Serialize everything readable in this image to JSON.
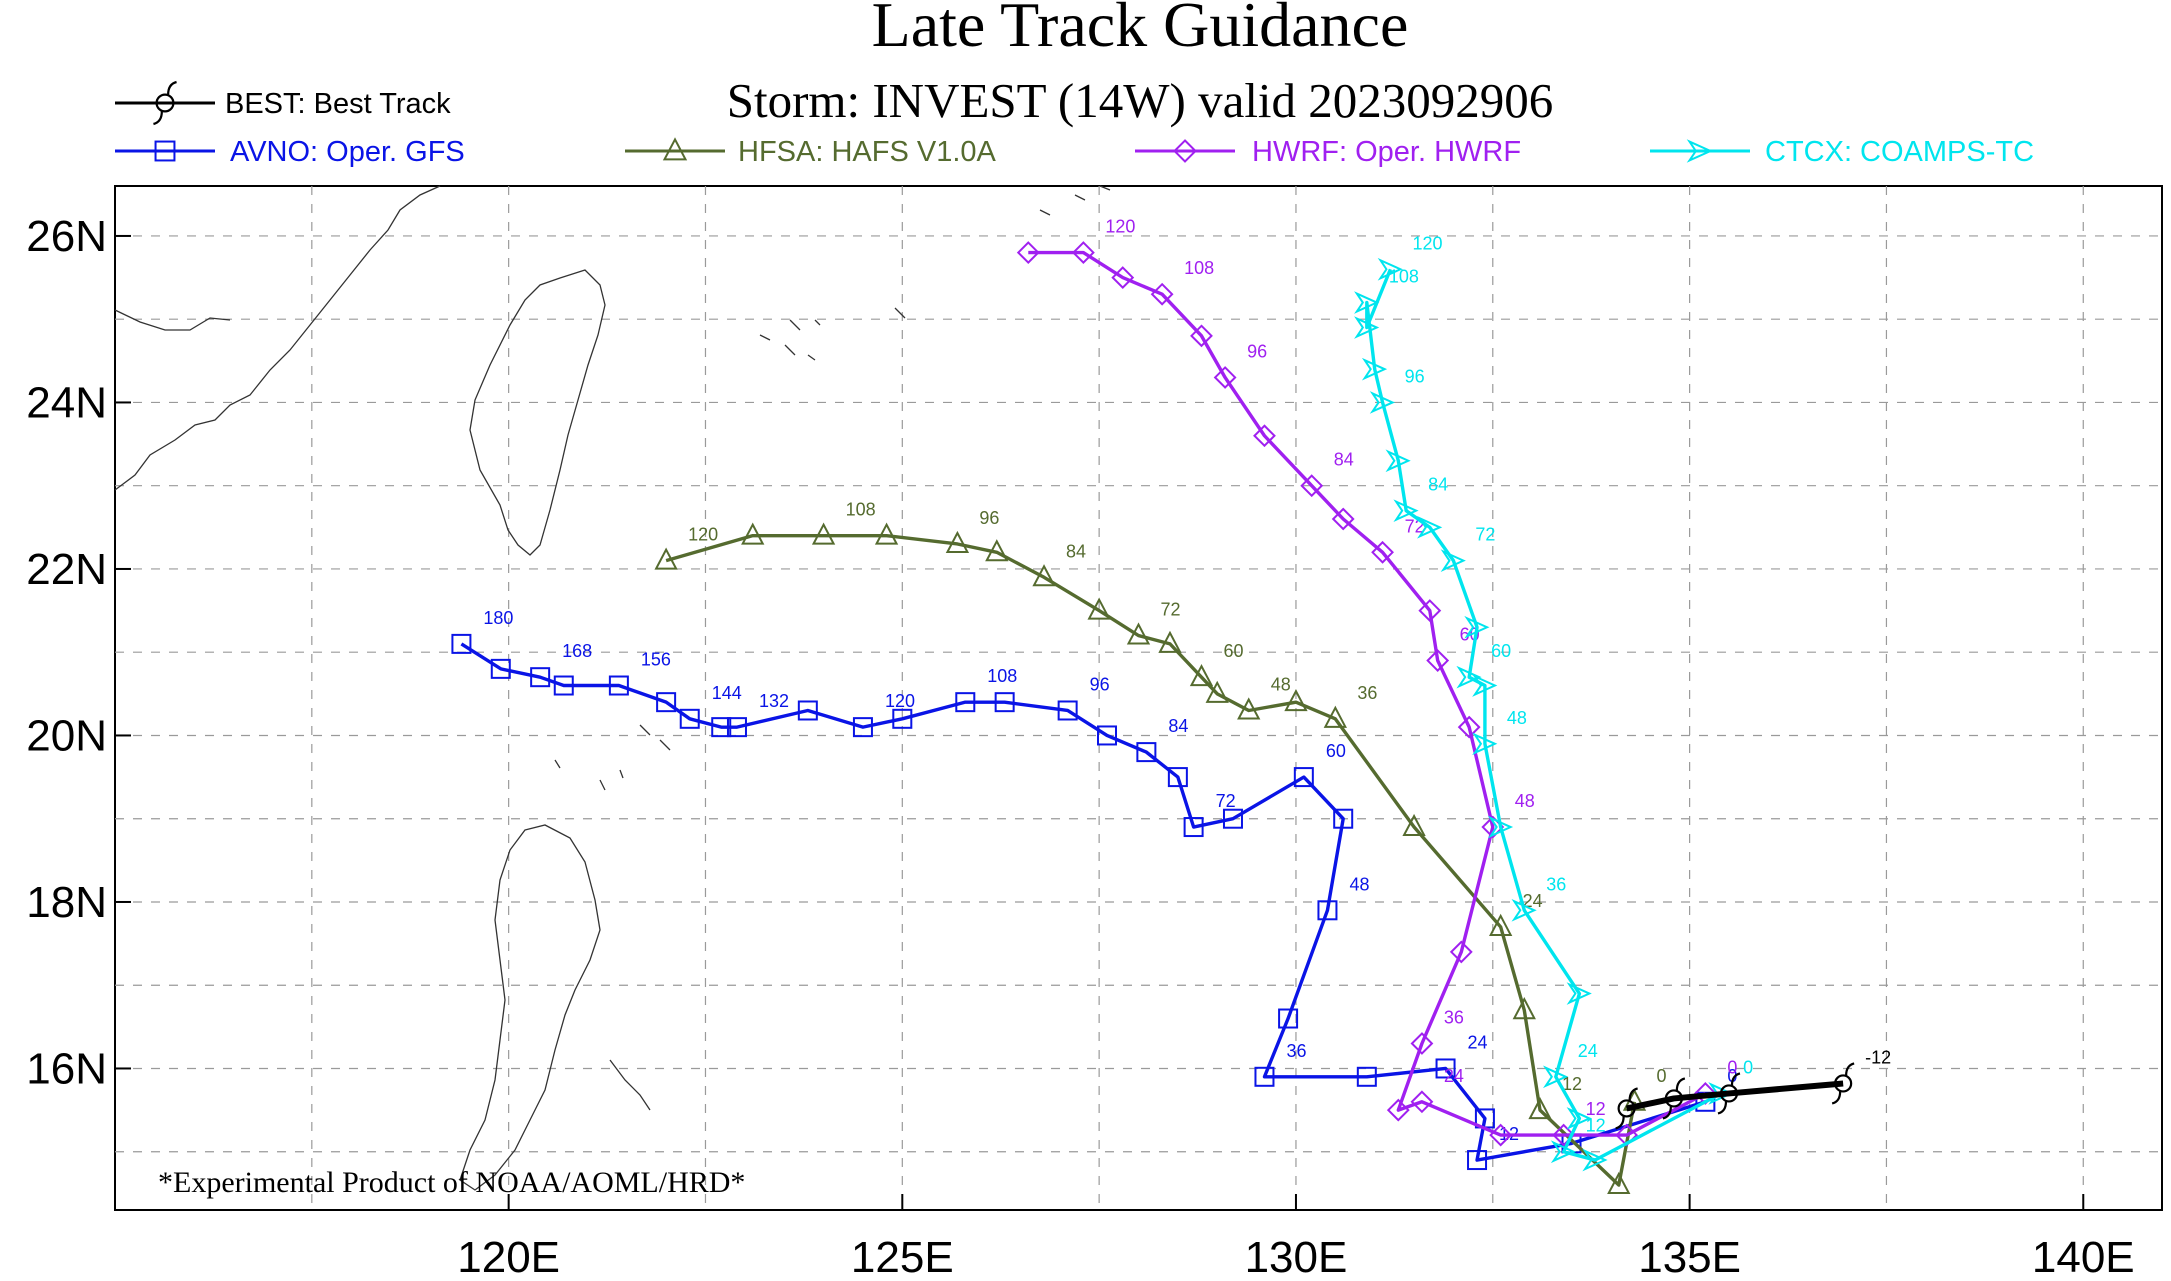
{
  "chart_data": {
    "type": "line",
    "title": "Late Track Guidance",
    "subtitle": "Storm: INVEST (14W) valid 2023092906",
    "footnote": "*Experimental Product of NOAA/AOML/HRD*",
    "xlabel": "",
    "ylabel": "",
    "xlim": [
      115.0,
      141.0
    ],
    "ylim": [
      14.3,
      26.6
    ],
    "x_ticks": [
      {
        "value": 120,
        "label": "120E"
      },
      {
        "value": 125,
        "label": "125E"
      },
      {
        "value": 130,
        "label": "130E"
      },
      {
        "value": 135,
        "label": "135E"
      },
      {
        "value": 140,
        "label": "140E"
      }
    ],
    "y_ticks": [
      {
        "value": 16,
        "label": "16N"
      },
      {
        "value": 18,
        "label": "18N"
      },
      {
        "value": 20,
        "label": "20N"
      },
      {
        "value": 22,
        "label": "22N"
      },
      {
        "value": 24,
        "label": "24N"
      },
      {
        "value": 26,
        "label": "26N"
      }
    ],
    "grid": true,
    "legend_position": "top",
    "series": [
      {
        "id": "best",
        "name": "BEST: Best Track",
        "color": "#000000",
        "marker": "hurricane",
        "points": [
          {
            "lon": 136.95,
            "lat": 15.82,
            "tau": "-12"
          },
          {
            "lon": 135.5,
            "lat": 15.7,
            "tau": ""
          },
          {
            "lon": 134.8,
            "lat": 15.64,
            "tau": ""
          },
          {
            "lon": 134.2,
            "lat": 15.52,
            "tau": ""
          }
        ]
      },
      {
        "id": "avno",
        "name": "AVNO: Oper. GFS",
        "color": "#0a14e6",
        "marker": "square",
        "points": [
          {
            "lon": 135.2,
            "lat": 15.6,
            "tau": "0"
          },
          {
            "lon": 133.5,
            "lat": 15.1,
            "tau": ""
          },
          {
            "lon": 132.3,
            "lat": 14.9,
            "tau": "12"
          },
          {
            "lon": 132.4,
            "lat": 15.4,
            "tau": ""
          },
          {
            "lon": 131.9,
            "lat": 16.0,
            "tau": "24"
          },
          {
            "lon": 130.9,
            "lat": 15.9,
            "tau": ""
          },
          {
            "lon": 129.6,
            "lat": 15.9,
            "tau": "36"
          },
          {
            "lon": 129.9,
            "lat": 16.6,
            "tau": ""
          },
          {
            "lon": 130.4,
            "lat": 17.9,
            "tau": "48"
          },
          {
            "lon": 130.6,
            "lat": 19.0,
            "tau": ""
          },
          {
            "lon": 130.1,
            "lat": 19.5,
            "tau": "60"
          },
          {
            "lon": 129.2,
            "lat": 19.0,
            "tau": ""
          },
          {
            "lon": 128.7,
            "lat": 18.9,
            "tau": "72"
          },
          {
            "lon": 128.5,
            "lat": 19.5,
            "tau": ""
          },
          {
            "lon": 128.1,
            "lat": 19.8,
            "tau": "84"
          },
          {
            "lon": 127.6,
            "lat": 20.0,
            "tau": ""
          },
          {
            "lon": 127.1,
            "lat": 20.3,
            "tau": "96"
          },
          {
            "lon": 126.3,
            "lat": 20.4,
            "tau": ""
          },
          {
            "lon": 125.8,
            "lat": 20.4,
            "tau": "108"
          },
          {
            "lon": 125.0,
            "lat": 20.2,
            "tau": ""
          },
          {
            "lon": 124.5,
            "lat": 20.1,
            "tau": "120"
          },
          {
            "lon": 123.8,
            "lat": 20.3,
            "tau": ""
          },
          {
            "lon": 122.9,
            "lat": 20.1,
            "tau": "132"
          },
          {
            "lon": 122.7,
            "lat": 20.1,
            "tau": ""
          },
          {
            "lon": 122.3,
            "lat": 20.2,
            "tau": "144"
          },
          {
            "lon": 122.0,
            "lat": 20.4,
            "tau": ""
          },
          {
            "lon": 121.4,
            "lat": 20.6,
            "tau": "156"
          },
          {
            "lon": 120.7,
            "lat": 20.6,
            "tau": ""
          },
          {
            "lon": 120.4,
            "lat": 20.7,
            "tau": "168"
          },
          {
            "lon": 119.9,
            "lat": 20.8,
            "tau": ""
          },
          {
            "lon": 119.4,
            "lat": 21.1,
            "tau": "180"
          }
        ]
      },
      {
        "id": "hfsa",
        "name": "HFSA: HAFS V1.0A",
        "color": "#556b2f",
        "marker": "triangle",
        "points": [
          {
            "lon": 134.3,
            "lat": 15.6,
            "tau": "0"
          },
          {
            "lon": 134.1,
            "lat": 14.6,
            "tau": ""
          },
          {
            "lon": 133.1,
            "lat": 15.5,
            "tau": "12"
          },
          {
            "lon": 132.9,
            "lat": 16.7,
            "tau": ""
          },
          {
            "lon": 132.6,
            "lat": 17.7,
            "tau": "24"
          },
          {
            "lon": 131.5,
            "lat": 18.9,
            "tau": ""
          },
          {
            "lon": 130.5,
            "lat": 20.2,
            "tau": "36"
          },
          {
            "lon": 130.0,
            "lat": 20.4,
            "tau": ""
          },
          {
            "lon": 129.4,
            "lat": 20.3,
            "tau": "48"
          },
          {
            "lon": 129.0,
            "lat": 20.5,
            "tau": ""
          },
          {
            "lon": 128.8,
            "lat": 20.7,
            "tau": "60"
          },
          {
            "lon": 128.4,
            "lat": 21.1,
            "tau": ""
          },
          {
            "lon": 128.0,
            "lat": 21.2,
            "tau": "72"
          },
          {
            "lon": 127.5,
            "lat": 21.5,
            "tau": ""
          },
          {
            "lon": 126.8,
            "lat": 21.9,
            "tau": "84"
          },
          {
            "lon": 126.2,
            "lat": 22.2,
            "tau": ""
          },
          {
            "lon": 125.7,
            "lat": 22.3,
            "tau": "96"
          },
          {
            "lon": 124.8,
            "lat": 22.4,
            "tau": ""
          },
          {
            "lon": 124.0,
            "lat": 22.4,
            "tau": "108"
          },
          {
            "lon": 123.1,
            "lat": 22.4,
            "tau": ""
          },
          {
            "lon": 122.0,
            "lat": 22.1,
            "tau": "120"
          }
        ]
      },
      {
        "id": "hwrf",
        "name": "HWRF: Oper. HWRF",
        "color": "#a020f0",
        "marker": "diamond",
        "points": [
          {
            "lon": 135.2,
            "lat": 15.7,
            "tau": "0"
          },
          {
            "lon": 134.2,
            "lat": 15.2,
            "tau": ""
          },
          {
            "lon": 133.4,
            "lat": 15.2,
            "tau": "12"
          },
          {
            "lon": 132.6,
            "lat": 15.2,
            "tau": ""
          },
          {
            "lon": 131.6,
            "lat": 15.6,
            "tau": "24"
          },
          {
            "lon": 131.3,
            "lat": 15.5,
            "tau": ""
          },
          {
            "lon": 131.6,
            "lat": 16.3,
            "tau": "36"
          },
          {
            "lon": 132.1,
            "lat": 17.4,
            "tau": ""
          },
          {
            "lon": 132.5,
            "lat": 18.9,
            "tau": "48"
          },
          {
            "lon": 132.2,
            "lat": 20.1,
            "tau": ""
          },
          {
            "lon": 131.8,
            "lat": 20.9,
            "tau": "60"
          },
          {
            "lon": 131.7,
            "lat": 21.5,
            "tau": ""
          },
          {
            "lon": 131.1,
            "lat": 22.2,
            "tau": "72"
          },
          {
            "lon": 130.6,
            "lat": 22.6,
            "tau": ""
          },
          {
            "lon": 130.2,
            "lat": 23.0,
            "tau": "84"
          },
          {
            "lon": 129.6,
            "lat": 23.6,
            "tau": ""
          },
          {
            "lon": 129.1,
            "lat": 24.3,
            "tau": "96"
          },
          {
            "lon": 128.8,
            "lat": 24.8,
            "tau": ""
          },
          {
            "lon": 128.3,
            "lat": 25.3,
            "tau": "108"
          },
          {
            "lon": 127.8,
            "lat": 25.5,
            "tau": ""
          },
          {
            "lon": 127.3,
            "lat": 25.8,
            "tau": "120"
          },
          {
            "lon": 126.6,
            "lat": 25.8,
            "tau": ""
          }
        ]
      },
      {
        "id": "ctcx",
        "name": "CTCX: COAMPS-TC",
        "color": "#00e5ee",
        "marker": "bowtie",
        "points": [
          {
            "lon": 135.4,
            "lat": 15.7,
            "tau": "0"
          },
          {
            "lon": 133.8,
            "lat": 14.9,
            "tau": ""
          },
          {
            "lon": 133.4,
            "lat": 15.0,
            "tau": "12"
          },
          {
            "lon": 133.6,
            "lat": 15.4,
            "tau": ""
          },
          {
            "lon": 133.3,
            "lat": 15.9,
            "tau": "24"
          },
          {
            "lon": 133.6,
            "lat": 16.9,
            "tau": ""
          },
          {
            "lon": 132.9,
            "lat": 17.9,
            "tau": "36"
          },
          {
            "lon": 132.6,
            "lat": 18.9,
            "tau": ""
          },
          {
            "lon": 132.4,
            "lat": 19.9,
            "tau": "48"
          },
          {
            "lon": 132.4,
            "lat": 20.6,
            "tau": ""
          },
          {
            "lon": 132.2,
            "lat": 20.7,
            "tau": "60"
          },
          {
            "lon": 132.3,
            "lat": 21.3,
            "tau": ""
          },
          {
            "lon": 132.0,
            "lat": 22.1,
            "tau": "72"
          },
          {
            "lon": 131.7,
            "lat": 22.5,
            "tau": ""
          },
          {
            "lon": 131.4,
            "lat": 22.7,
            "tau": "84"
          },
          {
            "lon": 131.3,
            "lat": 23.3,
            "tau": ""
          },
          {
            "lon": 131.1,
            "lat": 24.0,
            "tau": "96"
          },
          {
            "lon": 131.0,
            "lat": 24.4,
            "tau": ""
          },
          {
            "lon": 130.9,
            "lat": 25.2,
            "tau": "108"
          },
          {
            "lon": 130.9,
            "lat": 24.9,
            "tau": ""
          },
          {
            "lon": 131.2,
            "lat": 25.6,
            "tau": "120"
          }
        ]
      }
    ]
  }
}
